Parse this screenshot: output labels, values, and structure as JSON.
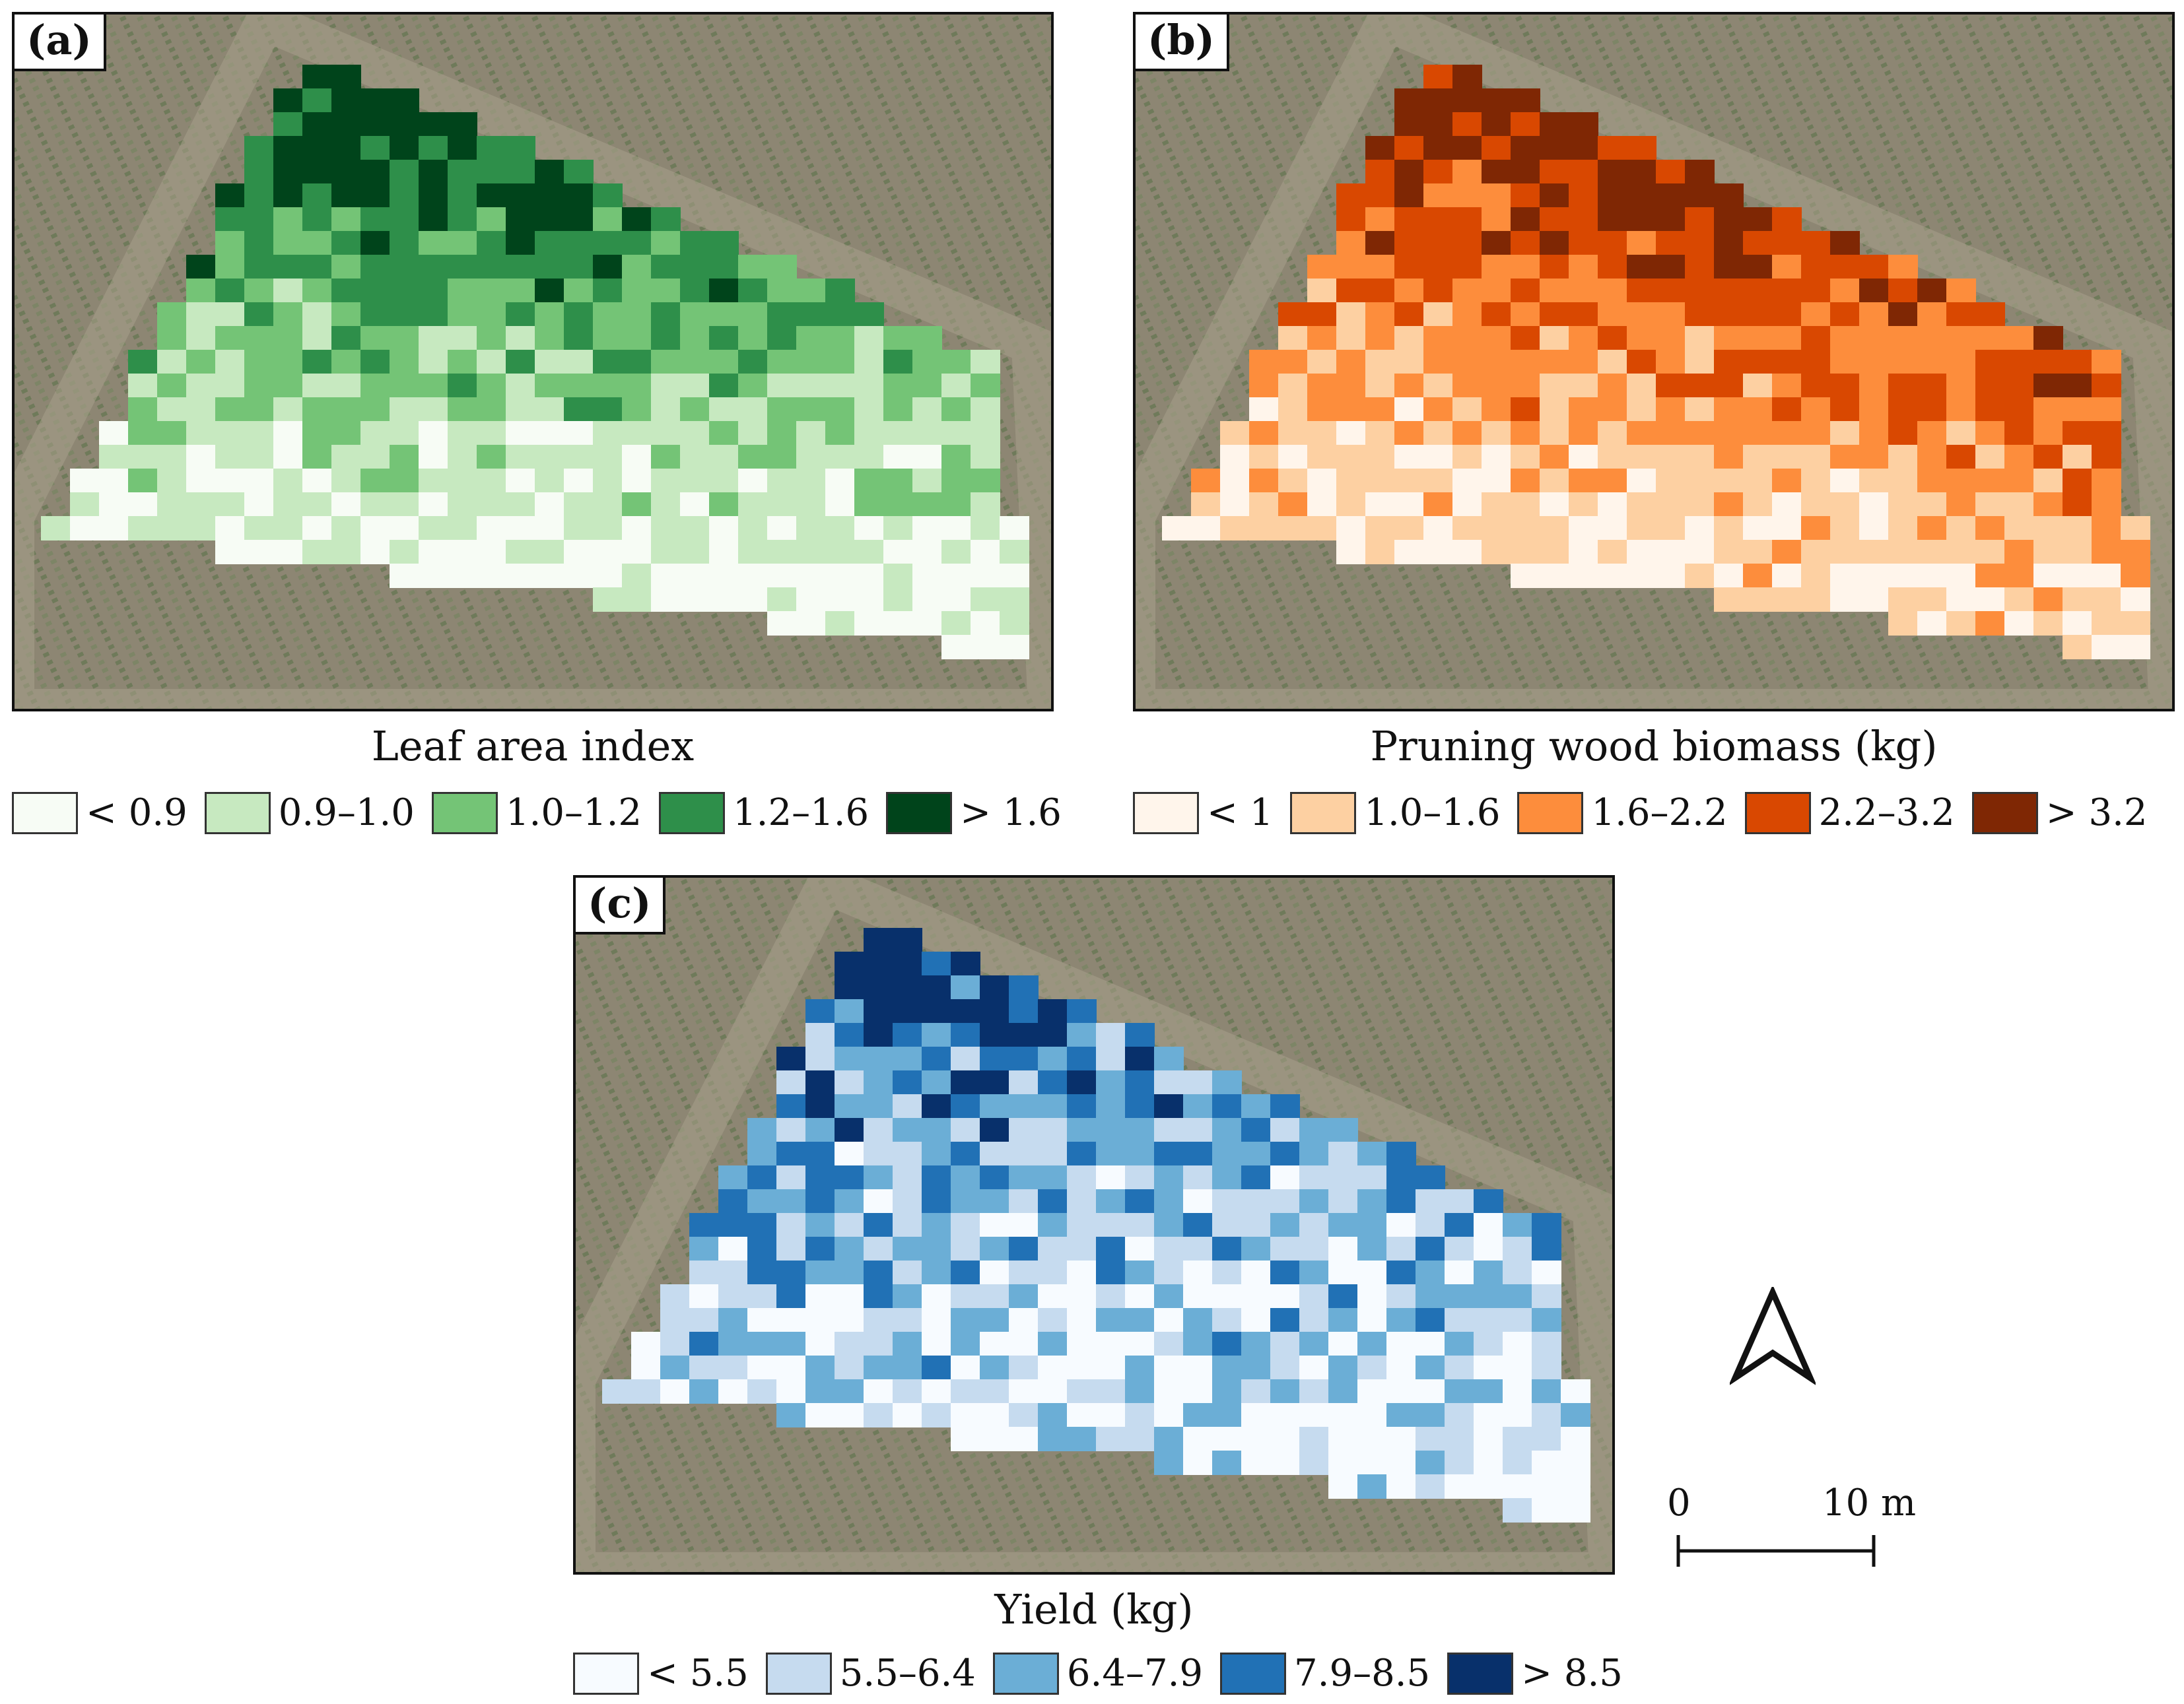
{
  "panels": {
    "a": {
      "label": "(a)",
      "title": "Leaf area index",
      "legend": [
        {
          "label": "< 0.9",
          "color": "#f7fcf5"
        },
        {
          "label": "0.9–1.0",
          "color": "#c7e9c0"
        },
        {
          "label": "1.0–1.2",
          "color": "#74c476"
        },
        {
          "label": "1.2–1.6",
          "color": "#2e8f4a"
        },
        {
          "label": "> 1.6",
          "color": "#00441b"
        }
      ]
    },
    "b": {
      "label": "(b)",
      "title": "Pruning wood biomass (kg)",
      "legend": [
        {
          "label": "< 1",
          "color": "#fff5eb"
        },
        {
          "label": "1.0–1.6",
          "color": "#fdd0a2"
        },
        {
          "label": "1.6–2.2",
          "color": "#fd8d3c"
        },
        {
          "label": "2.2–3.2",
          "color": "#d94801"
        },
        {
          "label": "> 3.2",
          "color": "#7f2704"
        }
      ]
    },
    "c": {
      "label": "(c)",
      "title": "Yield (kg)",
      "legend": [
        {
          "label": "< 5.5",
          "color": "#f7fbff"
        },
        {
          "label": "5.5–6.4",
          "color": "#c6dbef"
        },
        {
          "label": "6.4–7.9",
          "color": "#6baed6"
        },
        {
          "label": "7.9–8.5",
          "color": "#2171b5"
        },
        {
          "label": "> 8.5",
          "color": "#08306b"
        }
      ]
    }
  },
  "scale": {
    "start": "0",
    "end": "10 m"
  },
  "north_arrow": "north-arrow-icon",
  "colors": {
    "background_imagery": "#8a826f",
    "frame": "#111111"
  }
}
